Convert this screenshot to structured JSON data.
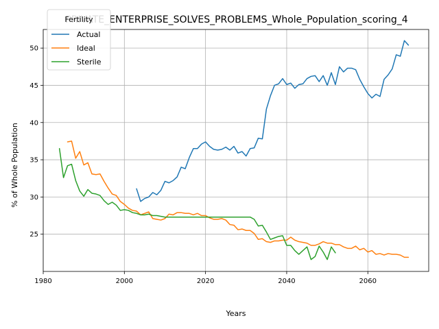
{
  "chart_data": {
    "type": "line",
    "title": "PRIVATE_ENTERPRISE_SOLVES_PROBLEMS_Whole_Population_scoring_4",
    "xlabel": "Years",
    "ylabel": "% of Whole Population",
    "xlim": [
      1980,
      2075
    ],
    "ylim": [
      20,
      52.5
    ],
    "xticks": [
      1980,
      2000,
      2020,
      2040,
      2060
    ],
    "yticks": [
      25,
      30,
      35,
      40,
      45,
      50
    ],
    "grid": true,
    "legend": {
      "title": "Fertility",
      "position": "top-left"
    },
    "series": [
      {
        "name": "Actual",
        "color": "#1f77b4",
        "x": [
          2003,
          2004,
          2005,
          2006,
          2007,
          2008,
          2009,
          2010,
          2011,
          2012,
          2013,
          2014,
          2015,
          2016,
          2017,
          2018,
          2019,
          2020,
          2021,
          2022,
          2023,
          2024,
          2025,
          2026,
          2027,
          2028,
          2029,
          2030,
          2031,
          2032,
          2033,
          2034,
          2035,
          2036,
          2037,
          2038,
          2039,
          2040,
          2041,
          2042,
          2043,
          2044,
          2045,
          2046,
          2047,
          2048,
          2049,
          2050,
          2051,
          2052,
          2053,
          2054,
          2055,
          2056,
          2057,
          2058,
          2059,
          2060,
          2061,
          2062,
          2063,
          2064,
          2065,
          2066,
          2067,
          2068,
          2069,
          2070
        ],
        "y": [
          31.1,
          29.4,
          29.8,
          30.0,
          30.6,
          30.3,
          30.9,
          32.1,
          31.9,
          32.2,
          32.7,
          34.0,
          33.8,
          35.3,
          36.5,
          36.5,
          37.1,
          37.4,
          36.8,
          36.4,
          36.3,
          36.4,
          36.7,
          36.3,
          36.8,
          35.9,
          36.1,
          35.5,
          36.5,
          36.6,
          37.9,
          37.8,
          41.8,
          43.6,
          45.0,
          45.2,
          45.9,
          45.1,
          45.3,
          44.6,
          45.1,
          45.2,
          45.9,
          46.2,
          46.3,
          45.5,
          46.3,
          45.0,
          46.7,
          45.1,
          47.5,
          46.8,
          47.3,
          47.3,
          47.1,
          45.8,
          44.8,
          43.9,
          43.3,
          43.8,
          43.5,
          45.8,
          46.4,
          47.2,
          49.1,
          48.9,
          51.0,
          50.4
        ]
      },
      {
        "name": "Ideal",
        "color": "#ff7f0e",
        "x": [
          1986,
          1987,
          1988,
          1989,
          1990,
          1991,
          1992,
          1993,
          1994,
          1995,
          1996,
          1997,
          1998,
          1999,
          2000,
          2001,
          2002,
          2003,
          2004,
          2005,
          2006,
          2007,
          2008,
          2009,
          2010,
          2011,
          2012,
          2013,
          2014,
          2015,
          2016,
          2017,
          2018,
          2019,
          2020,
          2021,
          2022,
          2023,
          2024,
          2025,
          2026,
          2027,
          2028,
          2029,
          2030,
          2031,
          2032,
          2033,
          2034,
          2035,
          2036,
          2037,
          2038,
          2039,
          2040,
          2041,
          2042,
          2043,
          2044,
          2045,
          2046,
          2047,
          2048,
          2049,
          2050,
          2051,
          2052,
          2053,
          2054,
          2055,
          2056,
          2057,
          2058,
          2059,
          2060,
          2061,
          2062,
          2063,
          2064,
          2065,
          2066,
          2067,
          2068,
          2069,
          2070
        ],
        "y": [
          37.4,
          37.5,
          35.2,
          36.1,
          34.3,
          34.6,
          33.1,
          33.0,
          33.1,
          32.1,
          31.2,
          30.4,
          30.2,
          29.4,
          29.0,
          28.5,
          28.2,
          28.1,
          27.6,
          27.8,
          28.0,
          27.1,
          27.0,
          26.9,
          27.1,
          27.7,
          27.6,
          27.9,
          27.9,
          27.8,
          27.8,
          27.6,
          27.8,
          27.5,
          27.5,
          27.2,
          27.0,
          27.0,
          27.1,
          26.9,
          26.3,
          26.2,
          25.6,
          25.7,
          25.5,
          25.5,
          25.1,
          24.3,
          24.4,
          24.0,
          23.9,
          24.1,
          24.1,
          24.2,
          24.2,
          24.6,
          24.2,
          24.0,
          23.9,
          23.8,
          23.5,
          23.5,
          23.7,
          24.0,
          23.8,
          23.8,
          23.6,
          23.6,
          23.3,
          23.1,
          23.1,
          23.4,
          22.9,
          23.1,
          22.6,
          22.8,
          22.3,
          22.4,
          22.2,
          22.4,
          22.3,
          22.3,
          22.2,
          21.9,
          21.9
        ]
      },
      {
        "name": "Sterile",
        "color": "#2ca02c",
        "x": [
          1984,
          1985,
          1986,
          1987,
          1988,
          1989,
          1990,
          1991,
          1992,
          1993,
          1994,
          1995,
          1996,
          1997,
          1998,
          1999,
          2000,
          2001,
          2002,
          2003,
          2004,
          2005,
          2006,
          2007,
          2008,
          2009,
          2010,
          2011,
          2012,
          2013,
          2014,
          2015,
          2016,
          2017,
          2018,
          2019,
          2020,
          2021,
          2022,
          2023,
          2024,
          2025,
          2026,
          2027,
          2028,
          2029,
          2030,
          2031,
          2032,
          2033,
          2034,
          2035,
          2036,
          2037,
          2038,
          2039,
          2040,
          2041,
          2042,
          2043,
          2044,
          2045,
          2046,
          2047,
          2048,
          2049,
          2050,
          2051,
          2052
        ],
        "y": [
          36.5,
          32.6,
          34.2,
          34.4,
          32.2,
          30.8,
          30.1,
          31.0,
          30.5,
          30.4,
          30.2,
          29.5,
          29.0,
          29.3,
          28.9,
          28.2,
          28.3,
          28.2,
          27.9,
          27.8,
          27.6,
          27.6,
          27.7,
          27.5,
          27.5,
          27.4,
          27.3,
          27.3,
          27.3,
          27.3,
          27.3,
          27.3,
          27.3,
          27.3,
          27.3,
          27.3,
          27.3,
          27.3,
          27.3,
          27.3,
          27.3,
          27.3,
          27.3,
          27.3,
          27.3,
          27.3,
          27.3,
          27.3,
          27.0,
          26.1,
          26.2,
          25.3,
          24.3,
          24.5,
          24.7,
          24.8,
          23.5,
          23.5,
          22.8,
          22.3,
          22.8,
          23.3,
          21.6,
          22.0,
          23.4,
          22.6,
          21.6,
          23.3,
          22.5
        ]
      }
    ]
  }
}
